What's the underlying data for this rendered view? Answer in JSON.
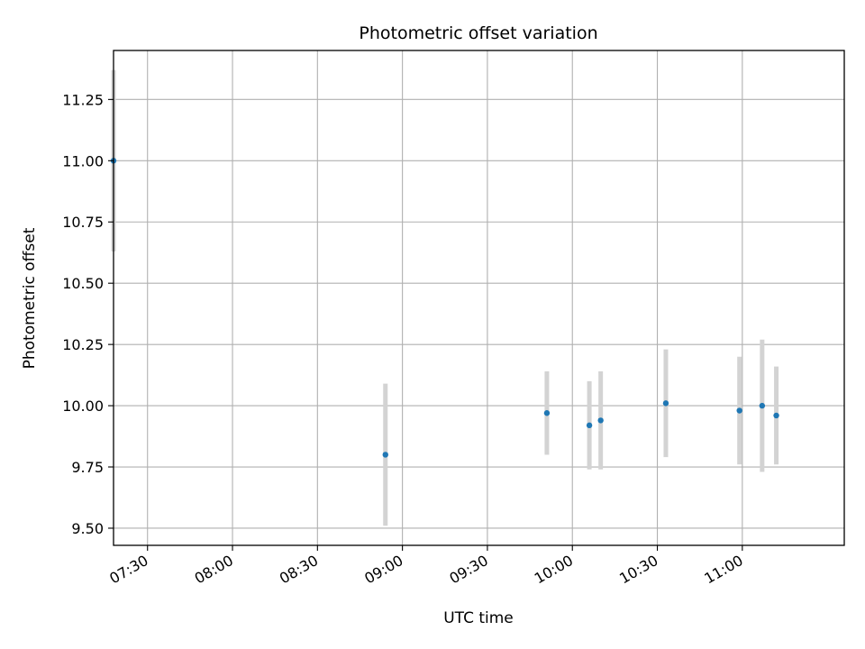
{
  "chart_data": {
    "type": "scatter",
    "title": "Photometric offset variation",
    "xlabel": "UTC time",
    "ylabel": "Photometric offset",
    "x_ticks": [
      "07:30",
      "08:00",
      "08:30",
      "09:00",
      "09:30",
      "10:00",
      "10:30",
      "11:00"
    ],
    "y_ticks": [
      "9.50",
      "9.75",
      "10.00",
      "10.25",
      "10.50",
      "10.75",
      "11.00",
      "11.25"
    ],
    "xlim": [
      "07:18",
      "11:36"
    ],
    "ylim": [
      9.43,
      11.45
    ],
    "grid": true,
    "marker_color": "#1f77b4",
    "errorbar_color": "#d3d3d3",
    "points": [
      {
        "x": "07:18",
        "y": 11.0,
        "yerr": 0.37
      },
      {
        "x": "08:54",
        "y": 9.8,
        "yerr": 0.29
      },
      {
        "x": "09:51",
        "y": 9.97,
        "yerr": 0.17
      },
      {
        "x": "10:06",
        "y": 9.92,
        "yerr": 0.18
      },
      {
        "x": "10:10",
        "y": 9.94,
        "yerr": 0.2
      },
      {
        "x": "10:33",
        "y": 10.01,
        "yerr": 0.22
      },
      {
        "x": "10:59",
        "y": 9.98,
        "yerr": 0.22
      },
      {
        "x": "11:07",
        "y": 10.0,
        "yerr": 0.27
      },
      {
        "x": "11:12",
        "y": 9.96,
        "yerr": 0.2
      }
    ]
  }
}
